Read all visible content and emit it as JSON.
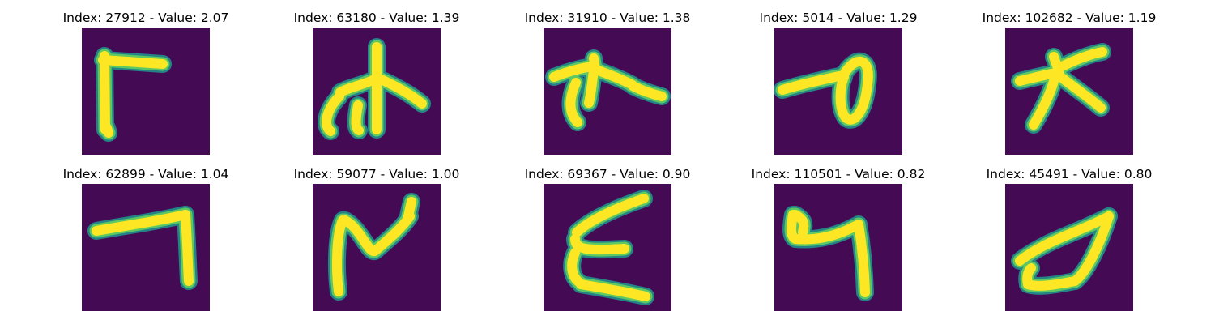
{
  "colors": {
    "background": "#450a54",
    "edge": "#21918c",
    "mid": "#5ec962",
    "stroke": "#fde725"
  },
  "images": [
    {
      "title": "Index: 27912 - Value: 2.07",
      "glyph": "L-shape with long top bar"
    },
    {
      "title": "Index: 63180 - Value: 1.39",
      "glyph": "trident-like character"
    },
    {
      "title": "Index: 31910 - Value: 1.38",
      "glyph": "branching hook character"
    },
    {
      "title": "Index: 5014 - Value: 1.29",
      "glyph": "line into loop"
    },
    {
      "title": "Index: 102682 - Value: 1.19",
      "glyph": "crossed stick figure"
    },
    {
      "title": "Index: 62899 - Value: 1.04",
      "glyph": "seven-like stroke"
    },
    {
      "title": "Index: 59077 - Value: 1.00",
      "glyph": "N-like wave"
    },
    {
      "title": "Index: 69367 - Value: 0.90",
      "glyph": "E / epsilon shape"
    },
    {
      "title": "Index: 110501 - Value: 0.82",
      "glyph": "h-like hook"
    },
    {
      "title": "Index: 45491 - Value: 0.80",
      "glyph": "reversed C curve"
    }
  ]
}
